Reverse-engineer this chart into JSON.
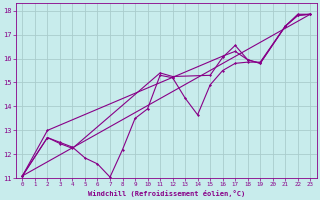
{
  "bg_color": "#c8ecec",
  "grid_color": "#aacccc",
  "line_color": "#880088",
  "xlim": [
    -0.5,
    23.5
  ],
  "ylim": [
    11,
    18.3
  ],
  "xticks": [
    0,
    1,
    2,
    3,
    4,
    5,
    6,
    7,
    8,
    9,
    10,
    11,
    12,
    13,
    14,
    15,
    16,
    17,
    18,
    19,
    20,
    21,
    22,
    23
  ],
  "yticks": [
    11,
    12,
    13,
    14,
    15,
    16,
    17,
    18
  ],
  "xlabel": "Windchill (Refroidissement éolien,°C)",
  "series1": [
    [
      0,
      11.1
    ],
    [
      2,
      12.7
    ],
    [
      3,
      12.5
    ],
    [
      4,
      12.3
    ],
    [
      5,
      11.85
    ],
    [
      6,
      11.6
    ],
    [
      7,
      11.05
    ],
    [
      8,
      12.2
    ],
    [
      9,
      13.5
    ],
    [
      10,
      13.9
    ],
    [
      11,
      15.3
    ],
    [
      12,
      15.2
    ],
    [
      13,
      14.35
    ],
    [
      14,
      13.65
    ],
    [
      15,
      14.9
    ],
    [
      16,
      15.5
    ],
    [
      17,
      15.8
    ],
    [
      18,
      15.85
    ],
    [
      19,
      15.85
    ],
    [
      21,
      17.35
    ],
    [
      22,
      17.8
    ],
    [
      23,
      17.85
    ]
  ],
  "series2": [
    [
      0,
      11.1
    ],
    [
      2,
      12.7
    ],
    [
      3,
      12.45
    ],
    [
      4,
      12.25
    ],
    [
      11,
      15.4
    ],
    [
      12,
      15.25
    ],
    [
      15,
      15.3
    ],
    [
      16,
      16.05
    ],
    [
      17,
      16.55
    ],
    [
      18,
      15.95
    ],
    [
      19,
      15.8
    ],
    [
      21,
      17.35
    ],
    [
      22,
      17.8
    ],
    [
      23,
      17.85
    ]
  ],
  "series3": [
    [
      0,
      11.1
    ],
    [
      2,
      13.0
    ],
    [
      16,
      16.1
    ],
    [
      17,
      16.3
    ],
    [
      18,
      15.95
    ],
    [
      19,
      15.8
    ],
    [
      21,
      17.35
    ],
    [
      22,
      17.85
    ],
    [
      23,
      17.85
    ]
  ],
  "series4": [
    [
      0,
      11.1
    ],
    [
      23,
      17.85
    ]
  ]
}
